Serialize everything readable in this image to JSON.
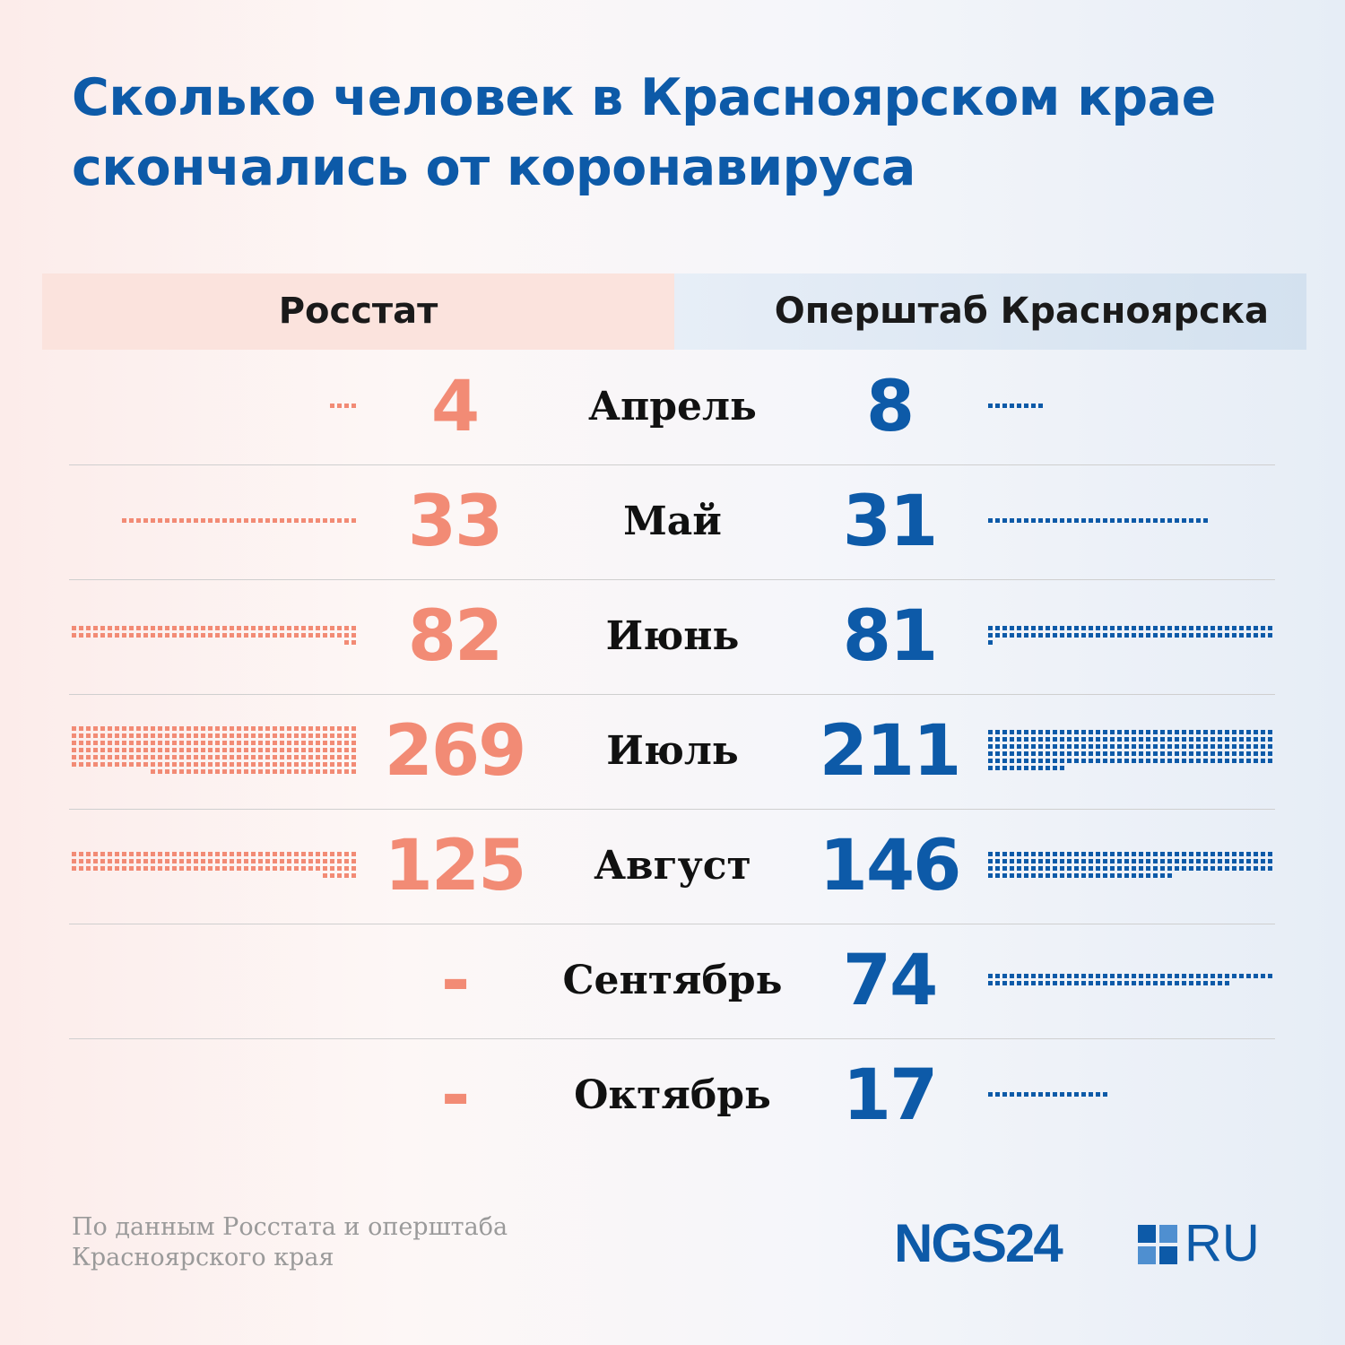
{
  "title": {
    "line1": "Сколько человек в Красноярском крае",
    "line2": "скончались от коронавируса"
  },
  "headers": {
    "left": "Росстат",
    "right": "Оперштаб Красноярска"
  },
  "chart_data": {
    "type": "table",
    "title": "Сколько человек в Красноярском крае скончались от коронавируса",
    "series": [
      {
        "name": "Росстат",
        "color": "#f28b75",
        "values": [
          4,
          33,
          82,
          269,
          125,
          null,
          null
        ]
      },
      {
        "name": "Оперштаб Красноярска",
        "color": "#0d5aa8",
        "values": [
          8,
          31,
          81,
          211,
          146,
          74,
          17
        ]
      }
    ],
    "categories": [
      "Апрель",
      "Май",
      "Июнь",
      "Июль",
      "Август",
      "Сентябрь",
      "Октябрь"
    ],
    "rows": [
      {
        "month": "Апрель",
        "left": "4",
        "right": "8"
      },
      {
        "month": "Май",
        "left": "33",
        "right": "31"
      },
      {
        "month": "Июнь",
        "left": "82",
        "right": "81"
      },
      {
        "month": "Июль",
        "left": "269",
        "right": "211"
      },
      {
        "month": "Август",
        "left": "125",
        "right": "146"
      },
      {
        "month": "Сентябрь",
        "left": "-",
        "right": "74"
      },
      {
        "month": "Октябрь",
        "left": "-",
        "right": "17"
      }
    ],
    "missing_marker": "-"
  },
  "footnote": {
    "line1": "По данным Росстата и оперштаба",
    "line2": "Красноярского края"
  },
  "logo": {
    "text": "NGS24",
    "suffix": "RU",
    "colors": [
      "#0d5aa8",
      "#4f8fd0",
      "#4f8fd0",
      "#0d5aa8"
    ]
  }
}
